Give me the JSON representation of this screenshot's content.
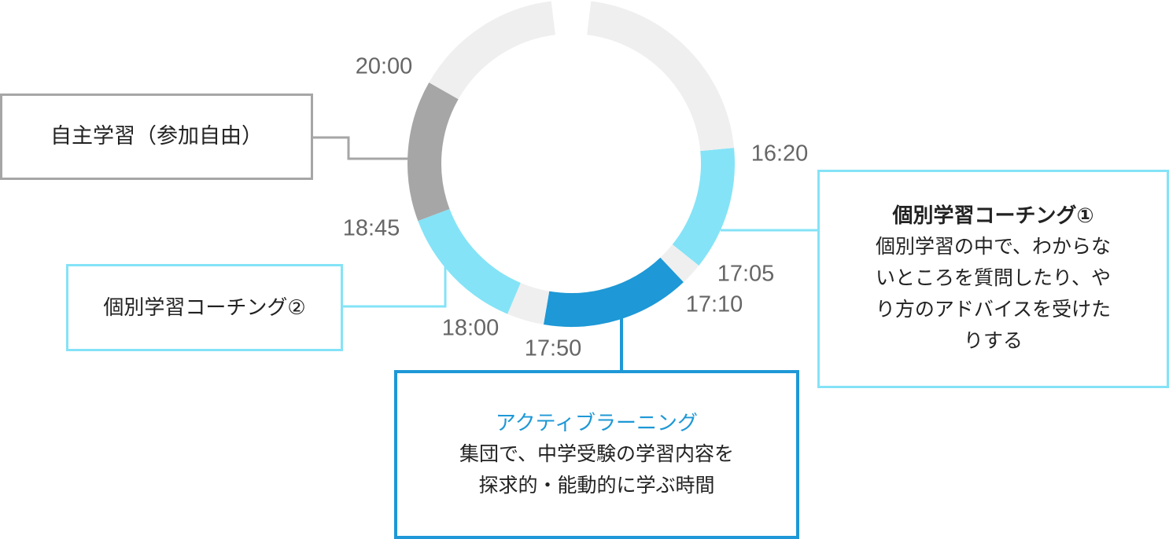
{
  "colors": {
    "free": "#efefef",
    "self_study": "#a6a6a6",
    "coaching": "#84e3f7",
    "active_learning": "#1e98d6",
    "time_label": "#666666"
  },
  "segments": [
    {
      "start": "16:20",
      "end": "17:05",
      "kind": "coaching"
    },
    {
      "start": "17:05",
      "end": "17:10",
      "kind": "free"
    },
    {
      "start": "17:10",
      "end": "17:50",
      "kind": "active_learning"
    },
    {
      "start": "17:50",
      "end": "18:00",
      "kind": "free"
    },
    {
      "start": "18:00",
      "end": "18:45",
      "kind": "coaching"
    },
    {
      "start": "18:45",
      "end": "20:00",
      "kind": "self_study"
    },
    {
      "start": "20:00",
      "end": "16:20",
      "kind": "free"
    }
  ],
  "time_labels": {
    "t1620": "16:20",
    "t1705": "17:05",
    "t1710": "17:10",
    "t1750": "17:50",
    "t1800": "18:00",
    "t1845": "18:45",
    "t2000": "20:00"
  },
  "boxes": {
    "self_study": {
      "title": "自主学習（参加自由）"
    },
    "coaching2": {
      "title": "個別学習コーチング②"
    },
    "coaching1": {
      "title": "個別学習コーチング①",
      "desc_lines": [
        "個別学習の中で、わからな",
        "いところを質問したり、や",
        "り方のアドバイスを受けた",
        "りする"
      ]
    },
    "active_learning": {
      "title": "アクティブラーニング",
      "desc_lines": [
        "集団で、中学受験の学習内容を",
        "探求的・能動的に学ぶ時間"
      ]
    }
  }
}
